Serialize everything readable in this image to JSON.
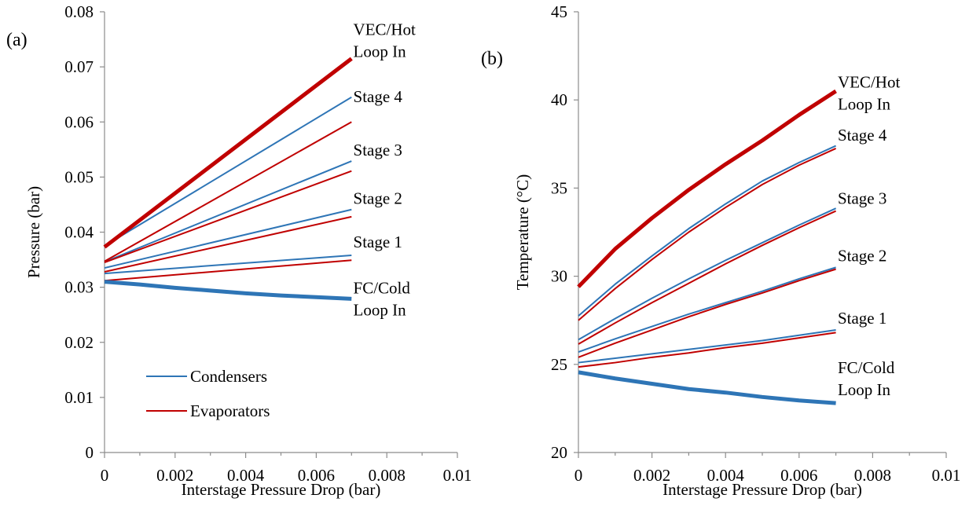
{
  "chart_data": [
    {
      "type": "line",
      "panel_label": "(a)",
      "xlabel": "Interstage Pressure Drop (bar)",
      "ylabel": "Pressure (bar)",
      "xlim": [
        0,
        0.01
      ],
      "ylim": [
        0,
        0.08
      ],
      "xticks": [
        0,
        0.002,
        0.004,
        0.006,
        0.008,
        0.01
      ],
      "xtick_labels": [
        "0",
        "0.002",
        "0.004",
        "0.006",
        "0.008",
        "0.01"
      ],
      "yticks": [
        0,
        0.01,
        0.02,
        0.03,
        0.04,
        0.05,
        0.06,
        0.07,
        0.08
      ],
      "ytick_labels": [
        "0",
        "0.01",
        "0.02",
        "0.03",
        "0.04",
        "0.05",
        "0.06",
        "0.07",
        "0.08"
      ],
      "grid": false,
      "legend": {
        "placement": "lower-left",
        "entries": [
          {
            "label": "Condensers",
            "color": "#2E75B6"
          },
          {
            "label": "Evaporators",
            "color": "#C00000"
          }
        ]
      },
      "series": [
        {
          "kind": "Condensers",
          "color": "#2E75B6",
          "bold": false,
          "x": [
            0,
            0.007
          ],
          "y": [
            0.0325,
            0.0358
          ]
        },
        {
          "kind": "Evaporators",
          "color": "#C00000",
          "bold": false,
          "x": [
            0,
            0.007
          ],
          "y": [
            0.0312,
            0.0349
          ]
        },
        {
          "kind": "Condensers",
          "color": "#2E75B6",
          "bold": false,
          "x": [
            0,
            0.007
          ],
          "y": [
            0.0335,
            0.0441
          ]
        },
        {
          "kind": "Evaporators",
          "color": "#C00000",
          "bold": false,
          "x": [
            0,
            0.007
          ],
          "y": [
            0.0328,
            0.0428
          ]
        },
        {
          "kind": "Condensers",
          "color": "#2E75B6",
          "bold": false,
          "x": [
            0,
            0.007
          ],
          "y": [
            0.0346,
            0.0529
          ]
        },
        {
          "kind": "Evaporators",
          "color": "#C00000",
          "bold": false,
          "x": [
            0,
            0.007
          ],
          "y": [
            0.0345,
            0.0511
          ]
        },
        {
          "kind": "Condensers",
          "color": "#2E75B6",
          "bold": false,
          "x": [
            0,
            0.007
          ],
          "y": [
            0.0375,
            0.0645
          ]
        },
        {
          "kind": "Evaporators",
          "color": "#C00000",
          "bold": false,
          "x": [
            0,
            0.007
          ],
          "y": [
            0.0347,
            0.06
          ]
        },
        {
          "kind": "Hot loop",
          "color": "#C00000",
          "bold": true,
          "x": [
            0,
            0.007
          ],
          "y": [
            0.0373,
            0.0715
          ]
        },
        {
          "kind": "Cold loop",
          "color": "#2E75B6",
          "bold": true,
          "x": [
            0,
            0.001,
            0.002,
            0.003,
            0.004,
            0.005,
            0.006,
            0.007
          ],
          "y": [
            0.031,
            0.0305,
            0.0299,
            0.0294,
            0.0289,
            0.0285,
            0.0282,
            0.0279
          ]
        }
      ],
      "annotations": [
        {
          "lines": [
            "VEC/Hot",
            "Loop In"
          ],
          "x": 0.00705,
          "y": 0.0758
        },
        {
          "lines": [
            "Stage 4"
          ],
          "x": 0.00705,
          "y": 0.0636
        },
        {
          "lines": [
            "Stage 3"
          ],
          "x": 0.00705,
          "y": 0.0539
        },
        {
          "lines": [
            "Stage 2"
          ],
          "x": 0.00705,
          "y": 0.0451
        },
        {
          "lines": [
            "Stage 1"
          ],
          "x": 0.00705,
          "y": 0.0372
        },
        {
          "lines": [
            "FC/Cold",
            "Loop In"
          ],
          "x": 0.00705,
          "y": 0.0289
        }
      ]
    },
    {
      "type": "line",
      "panel_label": "(b)",
      "xlabel": "Interstage Pressure Drop (bar)",
      "ylabel": "Temperature (°C)",
      "xlim": [
        0,
        0.01
      ],
      "ylim": [
        20,
        45
      ],
      "xticks": [
        0,
        0.002,
        0.004,
        0.006,
        0.008,
        0.01
      ],
      "xtick_labels": [
        "0",
        "0.002",
        "0.004",
        "0.006",
        "0.008",
        "0.01"
      ],
      "yticks": [
        20,
        25,
        30,
        35,
        40,
        45
      ],
      "ytick_labels": [
        "20",
        "25",
        "30",
        "35",
        "40",
        "45"
      ],
      "grid": false,
      "series": [
        {
          "kind": "Condensers",
          "color": "#2E75B6",
          "bold": false,
          "x": [
            0,
            0.001,
            0.002,
            0.003,
            0.004,
            0.005,
            0.006,
            0.007
          ],
          "y": [
            25.1,
            25.35,
            25.6,
            25.85,
            26.1,
            26.35,
            26.65,
            26.95
          ]
        },
        {
          "kind": "Evaporators",
          "color": "#C00000",
          "bold": false,
          "x": [
            0,
            0.001,
            0.002,
            0.003,
            0.004,
            0.005,
            0.006,
            0.007
          ],
          "y": [
            24.85,
            25.1,
            25.4,
            25.65,
            25.95,
            26.2,
            26.5,
            26.8
          ]
        },
        {
          "kind": "Condensers",
          "color": "#2E75B6",
          "bold": false,
          "x": [
            0,
            0.001,
            0.002,
            0.003,
            0.004,
            0.005,
            0.006,
            0.007
          ],
          "y": [
            25.7,
            26.45,
            27.15,
            27.85,
            28.5,
            29.15,
            29.85,
            30.5
          ]
        },
        {
          "kind": "Evaporators",
          "color": "#C00000",
          "bold": false,
          "x": [
            0,
            0.001,
            0.002,
            0.003,
            0.004,
            0.005,
            0.006,
            0.007
          ],
          "y": [
            25.4,
            26.2,
            26.95,
            27.7,
            28.4,
            29.05,
            29.75,
            30.4
          ]
        },
        {
          "kind": "Condensers",
          "color": "#2E75B6",
          "bold": false,
          "x": [
            0,
            0.001,
            0.002,
            0.003,
            0.004,
            0.005,
            0.006,
            0.007
          ],
          "y": [
            26.4,
            27.6,
            28.75,
            29.85,
            30.9,
            31.9,
            32.9,
            33.85
          ]
        },
        {
          "kind": "Evaporators",
          "color": "#C00000",
          "bold": false,
          "x": [
            0,
            0.001,
            0.002,
            0.003,
            0.004,
            0.005,
            0.006,
            0.007
          ],
          "y": [
            26.15,
            27.35,
            28.5,
            29.6,
            30.7,
            31.75,
            32.75,
            33.7
          ]
        },
        {
          "kind": "Condensers",
          "color": "#2E75B6",
          "bold": false,
          "x": [
            0,
            0.001,
            0.002,
            0.003,
            0.004,
            0.005,
            0.006,
            0.007
          ],
          "y": [
            27.75,
            29.55,
            31.15,
            32.7,
            34.1,
            35.4,
            36.45,
            37.4
          ]
        },
        {
          "kind": "Evaporators",
          "color": "#C00000",
          "bold": false,
          "x": [
            0,
            0.001,
            0.002,
            0.003,
            0.004,
            0.005,
            0.006,
            0.007
          ],
          "y": [
            27.5,
            29.3,
            30.95,
            32.5,
            33.9,
            35.2,
            36.3,
            37.25
          ]
        },
        {
          "kind": "Hot loop",
          "color": "#C00000",
          "bold": true,
          "x": [
            0,
            0.001,
            0.002,
            0.003,
            0.004,
            0.005,
            0.006,
            0.007
          ],
          "y": [
            29.4,
            31.55,
            33.3,
            34.9,
            36.35,
            37.7,
            39.15,
            40.5
          ]
        },
        {
          "kind": "Cold loop",
          "color": "#2E75B6",
          "bold": true,
          "x": [
            0,
            0.001,
            0.002,
            0.003,
            0.004,
            0.005,
            0.006,
            0.007
          ],
          "y": [
            24.55,
            24.2,
            23.9,
            23.6,
            23.4,
            23.15,
            22.95,
            22.8
          ]
        }
      ],
      "annotations": [
        {
          "lines": [
            "VEC/Hot",
            "Loop In"
          ],
          "x": 0.00705,
          "y": 40.7
        },
        {
          "lines": [
            "Stage 4"
          ],
          "x": 0.00705,
          "y": 37.7
        },
        {
          "lines": [
            "Stage 3"
          ],
          "x": 0.00705,
          "y": 34.1
        },
        {
          "lines": [
            "Stage 2"
          ],
          "x": 0.00705,
          "y": 30.85
        },
        {
          "lines": [
            "Stage 1"
          ],
          "x": 0.00705,
          "y": 27.3
        },
        {
          "lines": [
            "FC/Cold",
            "Loop In"
          ],
          "x": 0.00705,
          "y": 24.5
        }
      ]
    }
  ]
}
